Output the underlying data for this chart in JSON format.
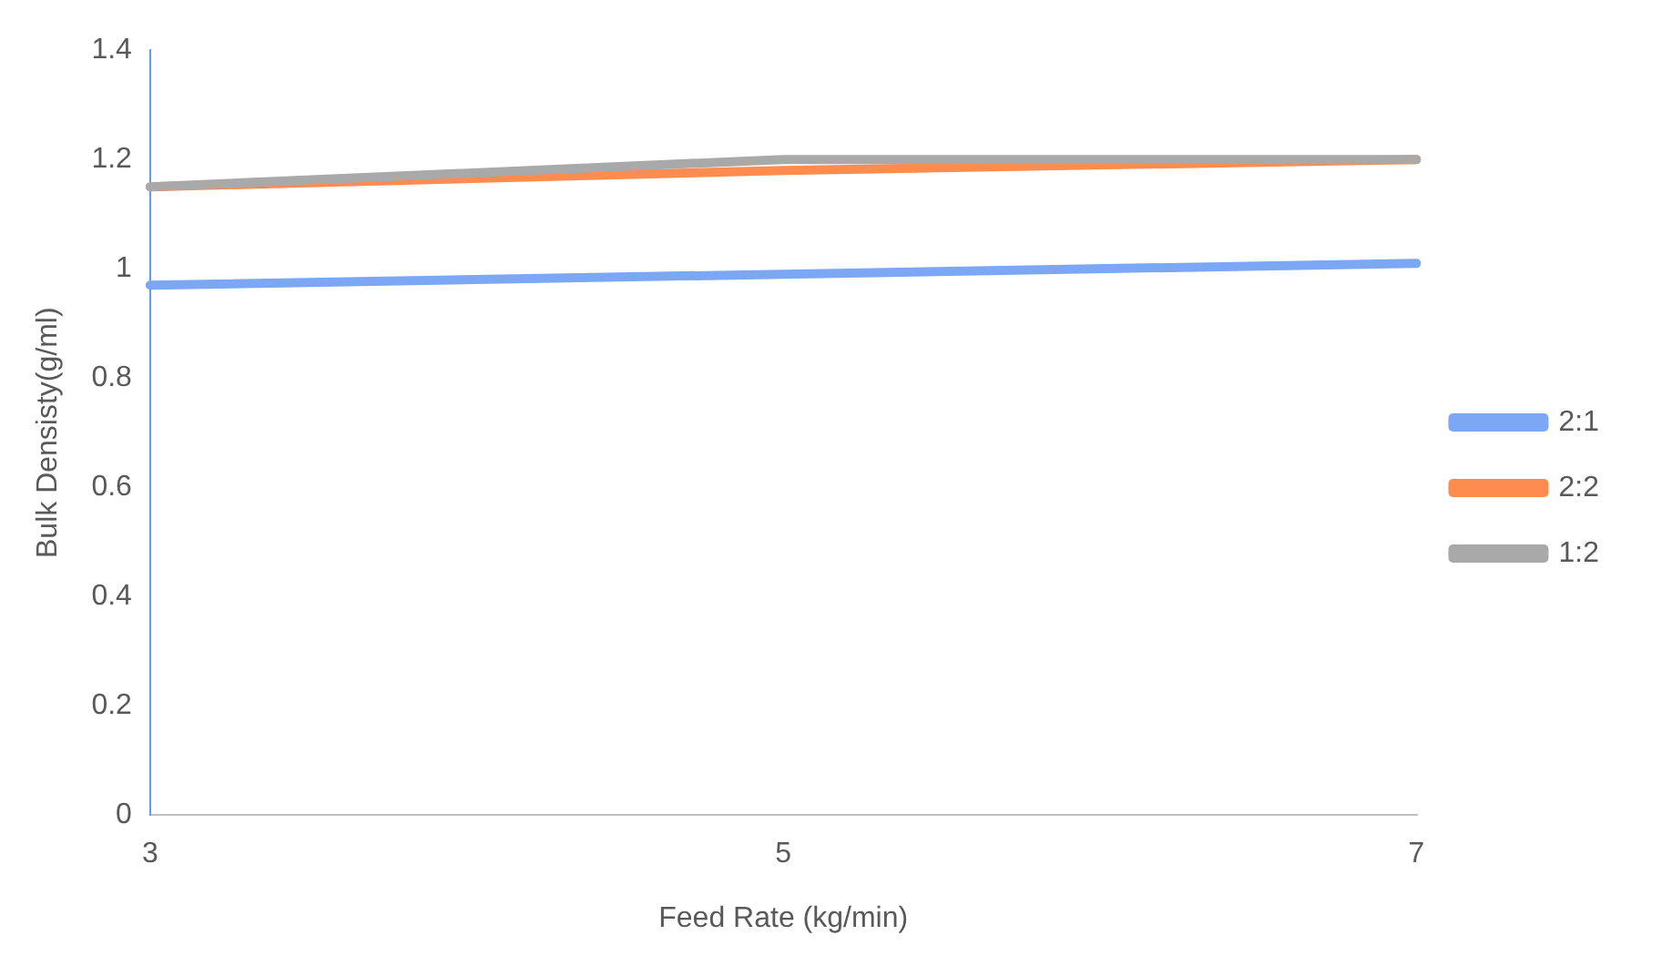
{
  "chart_data": {
    "type": "line",
    "xlabel": "Feed Rate (kg/min)",
    "ylabel": "Bulk Densisty(g/ml)",
    "categories": [
      "3",
      "5",
      "7"
    ],
    "series": [
      {
        "name": "2:1",
        "color": "#7ba7f5",
        "values": [
          0.97,
          0.99,
          1.01
        ]
      },
      {
        "name": "2:2",
        "color": "#ff8c4f",
        "values": [
          1.15,
          1.18,
          1.2
        ]
      },
      {
        "name": "1:2",
        "color": "#a9a9a9",
        "values": [
          1.15,
          1.2,
          1.2
        ]
      }
    ],
    "ylim": [
      0,
      1.4
    ],
    "yticks": [
      0,
      0.2,
      0.4,
      0.6,
      0.8,
      1,
      1.2,
      1.4
    ],
    "grid": false,
    "legend": "right",
    "marker": "none"
  }
}
